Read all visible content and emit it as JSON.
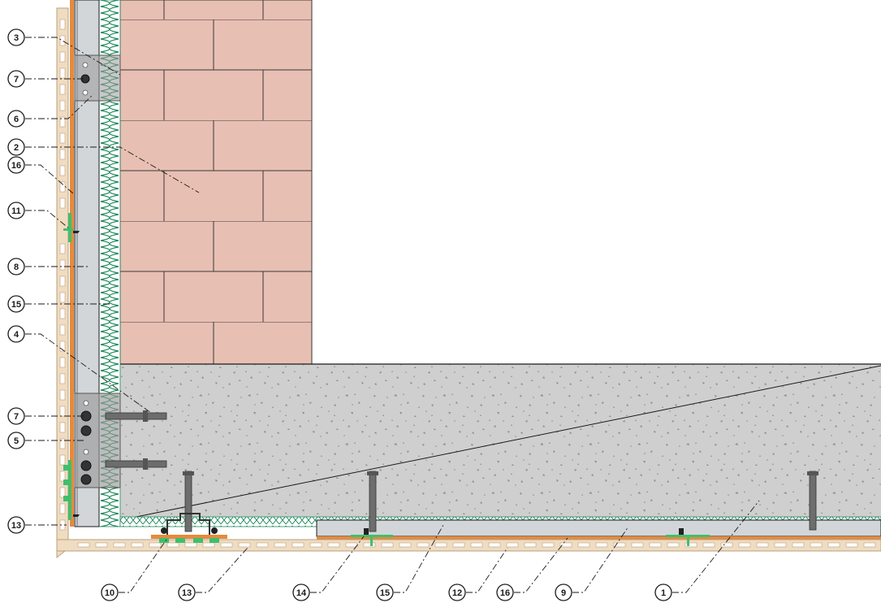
{
  "diagram": {
    "title": "",
    "colors": {
      "brick": "#e8bfb3",
      "mortar": "#3a3a3a",
      "concrete": "#cfcfcf",
      "insulation": "#1f8a5c",
      "subframe": "#d2d6d9",
      "cladding": "#f0dcc0",
      "membrane": "#e68a3c",
      "clip": "#3fbf6e",
      "anchor": "#6d6d6d",
      "bracket": "#9a9a9a",
      "line": "#1a1a1a"
    },
    "callouts": {
      "c3": "3",
      "c7a": "7",
      "c6": "6",
      "c2": "2",
      "c16a": "16",
      "c11": "11",
      "c8": "8",
      "c15a": "15",
      "c4": "4",
      "c7b": "7",
      "c5": "5",
      "c13a": "13",
      "c10": "10",
      "c13b": "13",
      "c14": "14",
      "c15b": "15",
      "c12": "12",
      "c16b": "16",
      "c9": "9",
      "c1": "1"
    }
  }
}
